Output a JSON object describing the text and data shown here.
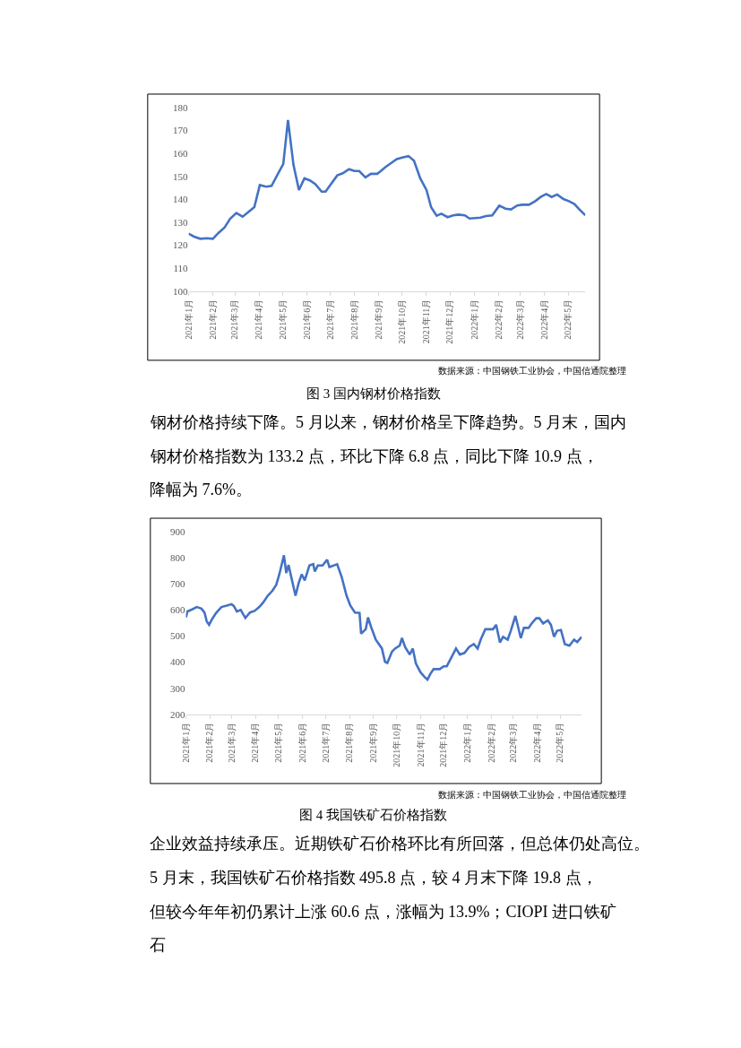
{
  "chart_data": [
    {
      "type": "line",
      "title": "图 3 国内钢材价格指数",
      "grid": false,
      "annotations": [
        "数据来源：中国钢铁工业协会，中国信通院整理",
        "钢材价格持续下降。5 月以来，钢材价格呈下降趋势。5 月末，国内钢材价格指数为 133.2 点，环比下降 6.8 点，同比下降 10.9 点，降幅为 7.6%。"
      ],
      "x": [
        "2021-01-01",
        "2021-01-08",
        "2021-01-16",
        "2021-01-24",
        "2021-02-01",
        "2021-02-08",
        "2021-02-16",
        "2021-02-23",
        "2021-03-03",
        "2021-03-11",
        "2021-03-18",
        "2021-03-26",
        "2021-04-02",
        "2021-04-10",
        "2021-04-17",
        "2021-04-25",
        "2021-05-02",
        "2021-05-08",
        "2021-05-15",
        "2021-05-22",
        "2021-05-29",
        "2021-06-05",
        "2021-06-12",
        "2021-06-20",
        "2021-06-25",
        "2021-07-02",
        "2021-07-10",
        "2021-07-17",
        "2021-07-25",
        "2021-08-01",
        "2021-08-07",
        "2021-08-15",
        "2021-08-22",
        "2021-08-30",
        "2021-09-03",
        "2021-09-09",
        "2021-09-17",
        "2021-09-24",
        "2021-10-02",
        "2021-10-09",
        "2021-10-16",
        "2021-10-24",
        "2021-11-01",
        "2021-11-07",
        "2021-11-14",
        "2021-11-20",
        "2021-11-28",
        "2021-12-05",
        "2021-12-12",
        "2021-12-20",
        "2021-12-26",
        "2022-01-02",
        "2022-01-09",
        "2022-01-16",
        "2022-01-24",
        "2022-02-02",
        "2022-02-10",
        "2022-02-17",
        "2022-02-25",
        "2022-03-03",
        "2022-03-12",
        "2022-03-20",
        "2022-03-27",
        "2022-04-03",
        "2022-04-10",
        "2022-04-17",
        "2022-04-25",
        "2022-05-02",
        "2022-05-09",
        "2022-05-16",
        "2022-05-23"
      ],
      "series": [
        {
          "color": "#4472c4",
          "values": [
            125,
            123.7,
            122.8,
            123,
            122.8,
            125.3,
            127.7,
            131.5,
            134,
            132.4,
            134.3,
            136.6,
            146.2,
            145.5,
            145.8,
            151,
            155.4,
            174.5,
            155,
            144,
            149.1,
            148.2,
            146.6,
            143.3,
            143.3,
            146.6,
            150.4,
            151.3,
            153.1,
            152.3,
            152.3,
            149.5,
            151.1,
            151.1,
            152.1,
            153.9,
            155.8,
            157.5,
            158.3,
            158.8,
            156.8,
            149.1,
            144,
            136.5,
            132.8,
            133.7,
            132.2,
            133,
            133.3,
            133,
            131.6,
            131.8,
            132,
            132.7,
            133,
            137.2,
            135.9,
            135.6,
            137.3,
            137.6,
            137.6,
            139.2,
            141,
            142.3,
            141,
            142.1,
            140.1,
            139.2,
            137.9,
            135.4,
            133
          ]
        }
      ],
      "xlim": [
        "2021-01-01",
        "2022-05-23"
      ],
      "xticks": [
        {
          "value": "2021-01-01",
          "label": "2021年1月"
        },
        {
          "value": "2021-02-01",
          "label": "2021年2月"
        },
        {
          "value": "2021-03-01",
          "label": "2021年3月"
        },
        {
          "value": "2021-04-01",
          "label": "2021年4月"
        },
        {
          "value": "2021-05-01",
          "label": "2021年5月"
        },
        {
          "value": "2021-06-01",
          "label": "2021年6月"
        },
        {
          "value": "2021-07-01",
          "label": "2021年7月"
        },
        {
          "value": "2021-08-01",
          "label": "2021年8月"
        },
        {
          "value": "2021-09-01",
          "label": "2021年9月"
        },
        {
          "value": "2021-10-01",
          "label": "2021年10月"
        },
        {
          "value": "2021-11-01",
          "label": "2021年11月"
        },
        {
          "value": "2021-12-01",
          "label": "2021年12月"
        },
        {
          "value": "2022-01-01",
          "label": "2022年1月"
        },
        {
          "value": "2022-02-01",
          "label": "2022年2月"
        },
        {
          "value": "2022-03-01",
          "label": "2022年3月"
        },
        {
          "value": "2022-04-01",
          "label": "2022年4月"
        },
        {
          "value": "2022-05-01",
          "label": "2022年5月"
        }
      ],
      "ylim": [
        100,
        180
      ],
      "yticks": [
        100,
        110,
        120,
        130,
        140,
        150,
        160,
        170,
        180
      ]
    },
    {
      "type": "line",
      "title": "图 4 我国铁矿石价格指数",
      "grid": false,
      "annotations": [
        "数据来源：中国钢铁工业协会，中国信通院整理",
        "企业效益持续承压。近期铁矿石价格环比有所回落，但总体仍处高位。5 月末，我国铁矿石价格指数 495.8 点，较 4 月末下降 19.8 点，但较今年年初仍累计上涨 60.6 点，涨幅为 13.9%；CIOPI 进口铁矿石"
      ],
      "x": [
        "2021-01-01",
        "2021-01-03",
        "2021-01-09",
        "2021-01-15",
        "2021-01-21",
        "2021-01-25",
        "2021-01-28",
        "2021-01-31",
        "2021-02-04",
        "2021-02-09",
        "2021-02-16",
        "2021-02-24",
        "2021-03-01",
        "2021-03-04",
        "2021-03-08",
        "2021-03-13",
        "2021-03-19",
        "2021-03-25",
        "2021-03-31",
        "2021-04-06",
        "2021-04-11",
        "2021-04-17",
        "2021-04-23",
        "2021-04-28",
        "2021-05-02",
        "2021-05-08",
        "2021-05-11",
        "2021-05-14",
        "2021-05-18",
        "2021-05-23",
        "2021-05-27",
        "2021-05-31",
        "2021-06-04",
        "2021-06-10",
        "2021-06-15",
        "2021-06-17",
        "2021-06-21",
        "2021-06-27",
        "2021-07-03",
        "2021-07-06",
        "2021-07-16",
        "2021-07-22",
        "2021-07-28",
        "2021-08-02",
        "2021-08-08",
        "2021-08-14",
        "2021-08-16",
        "2021-08-22",
        "2021-08-25",
        "2021-08-29",
        "2021-09-04",
        "2021-09-12",
        "2021-09-16",
        "2021-09-19",
        "2021-09-25",
        "2021-09-29",
        "2021-10-05",
        "2021-10-08",
        "2021-10-12",
        "2021-10-18",
        "2021-10-22",
        "2021-10-26",
        "2021-11-01",
        "2021-11-06",
        "2021-11-10",
        "2021-11-14",
        "2021-11-18",
        "2021-11-26",
        "2021-12-01",
        "2021-12-05",
        "2021-12-11",
        "2021-12-17",
        "2021-12-22",
        "2021-12-28",
        "2022-01-03",
        "2022-01-09",
        "2022-01-14",
        "2022-01-18",
        "2022-01-24",
        "2022-02-03",
        "2022-02-07",
        "2022-02-12",
        "2022-02-16",
        "2022-02-22",
        "2022-02-26",
        "2022-03-04",
        "2022-03-11",
        "2022-03-15",
        "2022-03-21",
        "2022-03-25",
        "2022-03-31",
        "2022-04-04",
        "2022-04-09",
        "2022-04-15",
        "2022-04-19",
        "2022-04-23",
        "2022-04-27",
        "2022-05-02",
        "2022-05-07",
        "2022-05-13",
        "2022-05-19",
        "2022-05-23",
        "2022-05-29"
      ],
      "series": [
        {
          "color": "#4472c4",
          "values": [
            571,
            594,
            602,
            611,
            605,
            590,
            556,
            543,
            565,
            588,
            611,
            617,
            622,
            615,
            594,
            600,
            569,
            590,
            596,
            611,
            628,
            654,
            673,
            696,
            736,
            809,
            741,
            772,
            719,
            654,
            702,
            736,
            713,
            770,
            775,
            747,
            770,
            770,
            792,
            764,
            775,
            724,
            656,
            617,
            590,
            588,
            509,
            526,
            571,
            534,
            486,
            452,
            401,
            397,
            440,
            452,
            463,
            492,
            458,
            429,
            452,
            395,
            361,
            344,
            333,
            356,
            373,
            373,
            384,
            384,
            418,
            452,
            429,
            435,
            458,
            469,
            452,
            486,
            526,
            526,
            543,
            475,
            497,
            486,
            520,
            577,
            492,
            531,
            531,
            548,
            568,
            568,
            548,
            560,
            543,
            497,
            520,
            523,
            469,
            463,
            486,
            477,
            497
          ]
        }
      ],
      "xlim": [
        "2021-01-01",
        "2022-05-29"
      ],
      "xticks": [
        {
          "value": "2021-01-01",
          "label": "2021年1月"
        },
        {
          "value": "2021-02-01",
          "label": "2021年2月"
        },
        {
          "value": "2021-03-01",
          "label": "2021年3月"
        },
        {
          "value": "2021-04-01",
          "label": "2021年4月"
        },
        {
          "value": "2021-05-01",
          "label": "2021年5月"
        },
        {
          "value": "2021-06-01",
          "label": "2021年6月"
        },
        {
          "value": "2021-07-01",
          "label": "2021年7月"
        },
        {
          "value": "2021-08-01",
          "label": "2021年8月"
        },
        {
          "value": "2021-09-01",
          "label": "2021年9月"
        },
        {
          "value": "2021-10-01",
          "label": "2021年10月"
        },
        {
          "value": "2021-11-01",
          "label": "2021年11月"
        },
        {
          "value": "2021-12-01",
          "label": "2021年12月"
        },
        {
          "value": "2022-01-01",
          "label": "2022年1月"
        },
        {
          "value": "2022-02-01",
          "label": "2022年2月"
        },
        {
          "value": "2022-03-01",
          "label": "2022年3月"
        },
        {
          "value": "2022-04-01",
          "label": "2022年4月"
        },
        {
          "value": "2022-05-01",
          "label": "2022年5月"
        }
      ],
      "ylim": [
        200,
        900
      ],
      "yticks": [
        200,
        300,
        400,
        500,
        600,
        700,
        800,
        900
      ]
    }
  ]
}
